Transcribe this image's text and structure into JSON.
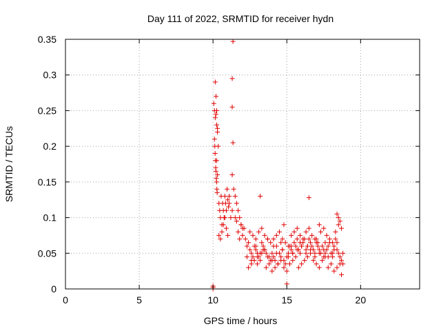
{
  "chart_data": {
    "type": "scatter",
    "title": "Day 111 of 2022, SRMTID for receiver hydn",
    "xlabel": "GPS time / hours",
    "ylabel": "SRMTID / TECUs",
    "xlim": [
      0,
      24
    ],
    "ylim": [
      0,
      0.35
    ],
    "grid": true,
    "marker": "+",
    "color": "#e00000",
    "xticks": [
      {
        "value": 0,
        "label": "0"
      },
      {
        "value": 5,
        "label": "5"
      },
      {
        "value": 10,
        "label": "10"
      },
      {
        "value": 15,
        "label": "15"
      },
      {
        "value": 20,
        "label": "20"
      }
    ],
    "yticks": [
      {
        "value": 0,
        "label": "0"
      },
      {
        "value": 0.05,
        "label": "0.05"
      },
      {
        "value": 0.1,
        "label": "0.1"
      },
      {
        "value": 0.15,
        "label": "0.15"
      },
      {
        "value": 0.2,
        "label": "0.2"
      },
      {
        "value": 0.25,
        "label": "0.25"
      },
      {
        "value": 0.3,
        "label": "0.3"
      },
      {
        "value": 0.35,
        "label": "0.35"
      }
    ],
    "series": [
      {
        "name": "SRMTID",
        "x": [
          10.0,
          10.0,
          10.0,
          10.05,
          10.1,
          10.15,
          10.2,
          10.25,
          10.3,
          10.1,
          10.12,
          10.14,
          10.16,
          10.18,
          10.2,
          10.22,
          10.24,
          10.26,
          10.28,
          10.15,
          10.2,
          10.25,
          10.3,
          10.35,
          10.25,
          10.3,
          10.4,
          10.45,
          10.5,
          10.55,
          10.6,
          10.65,
          10.7,
          10.75,
          10.8,
          10.85,
          10.9,
          10.95,
          11.0,
          11.05,
          11.1,
          10.4,
          10.5,
          10.6,
          10.7,
          10.8,
          10.9,
          11.0,
          11.1,
          11.2,
          11.3,
          11.35,
          11.3,
          11.3,
          11.35,
          11.3,
          11.4,
          11.5,
          11.6,
          11.7,
          11.8,
          11.9,
          12.0,
          11.5,
          11.6,
          11.7,
          11.8,
          11.9,
          12.0,
          12.1,
          12.2,
          12.3,
          12.4,
          12.5,
          12.6,
          12.7,
          12.8,
          12.9,
          13.0,
          13.1,
          13.2,
          13.3,
          13.4,
          13.5,
          13.6,
          13.7,
          13.8,
          13.9,
          14.0,
          14.1,
          14.2,
          14.3,
          14.4,
          14.5,
          14.6,
          14.7,
          14.8,
          14.9,
          15.0,
          15.1,
          15.2,
          15.3,
          15.4,
          15.5,
          15.6,
          15.7,
          15.8,
          15.9,
          16.0,
          16.1,
          16.2,
          16.3,
          16.4,
          16.5,
          16.6,
          16.7,
          16.8,
          16.9,
          17.0,
          17.1,
          17.2,
          17.3,
          17.4,
          17.5,
          17.6,
          17.7,
          17.8,
          17.9,
          18.0,
          18.1,
          18.2,
          18.3,
          18.4,
          18.5,
          18.6,
          18.7,
          18.8,
          12.4,
          12.6,
          12.8,
          13.0,
          13.2,
          13.4,
          13.6,
          13.8,
          14.0,
          14.2,
          14.4,
          14.6,
          14.8,
          15.0,
          15.2,
          15.4,
          15.6,
          15.8,
          16.0,
          16.2,
          16.4,
          16.6,
          16.8,
          17.0,
          17.2,
          17.4,
          17.6,
          17.8,
          18.0,
          18.2,
          18.4,
          18.6,
          12.5,
          12.7,
          12.9,
          13.1,
          13.3,
          13.5,
          13.7,
          13.9,
          14.1,
          14.3,
          14.5,
          14.7,
          14.9,
          15.1,
          15.3,
          15.5,
          15.7,
          15.9,
          16.1,
          16.3,
          16.5,
          16.7,
          16.9,
          17.1,
          17.3,
          17.5,
          17.7,
          17.9,
          18.1,
          18.3,
          18.5,
          18.7,
          13.2,
          14.8,
          15.0,
          16.5,
          17.2,
          18.4,
          18.5,
          18.6,
          12.3,
          12.6,
          13.0,
          13.3,
          13.7,
          14.0,
          14.3,
          14.7,
          15.1,
          15.4,
          15.7,
          16.0,
          16.3,
          16.6,
          16.9,
          17.2,
          17.5,
          17.8,
          18.1,
          18.4,
          18.7,
          12.9,
          13.5,
          14.1,
          14.6,
          15.3,
          15.9,
          16.4,
          17.0,
          17.6,
          18.2,
          18.8
        ],
        "y": [
          0.0,
          0.002,
          0.004,
          0.26,
          0.25,
          0.24,
          0.245,
          0.23,
          0.22,
          0.21,
          0.2,
          0.19,
          0.18,
          0.17,
          0.165,
          0.155,
          0.15,
          0.14,
          0.135,
          0.29,
          0.27,
          0.25,
          0.225,
          0.2,
          0.18,
          0.16,
          0.12,
          0.11,
          0.1,
          0.13,
          0.09,
          0.12,
          0.11,
          0.1,
          0.13,
          0.12,
          0.11,
          0.14,
          0.125,
          0.115,
          0.13,
          0.075,
          0.07,
          0.08,
          0.09,
          0.1,
          0.085,
          0.075,
          0.12,
          0.1,
          0.11,
          0.347,
          0.295,
          0.255,
          0.205,
          0.16,
          0.14,
          0.13,
          0.12,
          0.11,
          0.1,
          0.09,
          0.085,
          0.1,
          0.095,
          0.08,
          0.07,
          0.09,
          0.075,
          0.085,
          0.07,
          0.06,
          0.065,
          0.055,
          0.05,
          0.045,
          0.06,
          0.055,
          0.05,
          0.045,
          0.04,
          0.065,
          0.06,
          0.055,
          0.05,
          0.07,
          0.045,
          0.04,
          0.05,
          0.045,
          0.04,
          0.06,
          0.035,
          0.05,
          0.045,
          0.055,
          0.04,
          0.035,
          0.045,
          0.05,
          0.06,
          0.055,
          0.05,
          0.065,
          0.06,
          0.07,
          0.055,
          0.05,
          0.06,
          0.065,
          0.07,
          0.055,
          0.06,
          0.07,
          0.065,
          0.06,
          0.055,
          0.05,
          0.065,
          0.06,
          0.055,
          0.05,
          0.06,
          0.045,
          0.05,
          0.055,
          0.06,
          0.065,
          0.05,
          0.045,
          0.055,
          0.07,
          0.065,
          0.05,
          0.045,
          0.04,
          0.035,
          0.03,
          0.035,
          0.04,
          0.045,
          0.05,
          0.055,
          0.03,
          0.035,
          0.025,
          0.03,
          0.035,
          0.04,
          0.03,
          0.025,
          0.035,
          0.04,
          0.045,
          0.03,
          0.035,
          0.04,
          0.045,
          0.05,
          0.04,
          0.035,
          0.03,
          0.04,
          0.045,
          0.03,
          0.035,
          0.025,
          0.03,
          0.035,
          0.08,
          0.075,
          0.07,
          0.08,
          0.085,
          0.075,
          0.07,
          0.065,
          0.07,
          0.075,
          0.08,
          0.07,
          0.065,
          0.06,
          0.075,
          0.08,
          0.085,
          0.075,
          0.07,
          0.08,
          0.085,
          0.075,
          0.07,
          0.065,
          0.08,
          0.085,
          0.075,
          0.07,
          0.065,
          0.08,
          0.09,
          0.085,
          0.13,
          0.09,
          0.007,
          0.128,
          0.09,
          0.105,
          0.1,
          0.095,
          0.045,
          0.04,
          0.035,
          0.05,
          0.045,
          0.04,
          0.05,
          0.055,
          0.045,
          0.05,
          0.055,
          0.06,
          0.05,
          0.055,
          0.045,
          0.05,
          0.055,
          0.045,
          0.05,
          0.055,
          0.02,
          0.06,
          0.055,
          0.06,
          0.065,
          0.06,
          0.065,
          0.06,
          0.07,
          0.065,
          0.06,
          0.05
        ]
      }
    ]
  }
}
